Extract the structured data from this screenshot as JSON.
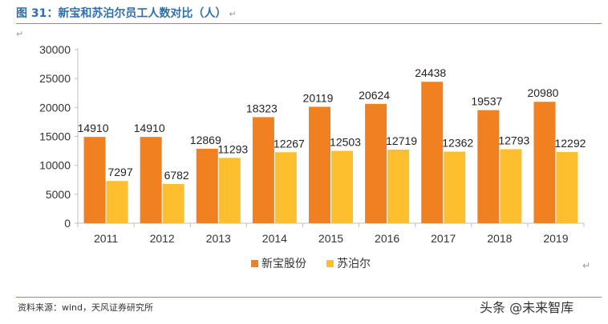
{
  "figure": {
    "title": "图 31：新宝和苏泊尔员工人数对比（人）",
    "source": "资料来源：wind，天风证券研究所",
    "watermark": "头条 @未来智库",
    "para_mark": "↵"
  },
  "colors": {
    "series1": "#f08020",
    "series2": "#fdbf2d",
    "axis": "#bfbfbf",
    "text": "#333333"
  },
  "chart_data": {
    "type": "bar",
    "categories": [
      "2011",
      "2012",
      "2013",
      "2014",
      "2015",
      "2016",
      "2017",
      "2018",
      "2019"
    ],
    "series": [
      {
        "name": "新宝股份",
        "values": [
          14910,
          14910,
          12869,
          18323,
          20119,
          20624,
          24438,
          19537,
          20980
        ]
      },
      {
        "name": "苏泊尔",
        "values": [
          7297,
          6782,
          11293,
          12267,
          12503,
          12719,
          12362,
          12793,
          12292
        ]
      }
    ],
    "yticks": [
      "0",
      "5000",
      "10000",
      "15000",
      "20000",
      "25000",
      "30000"
    ],
    "ylim": [
      0,
      30000
    ],
    "grid": false,
    "legend_position": "bottom"
  }
}
